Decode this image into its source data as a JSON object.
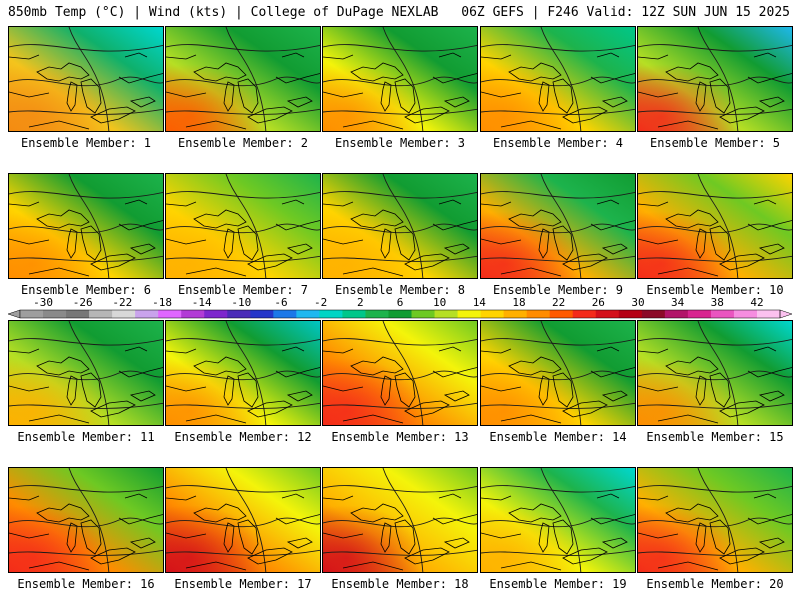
{
  "header": {
    "left": "850mb Temp (°C) | Wind (kts) | College of DuPage NEXLAB",
    "right": "06Z GEFS | F246 Valid: 12Z SUN JUN 15 2025"
  },
  "members": [
    {
      "label": "Ensemble Member: 1"
    },
    {
      "label": "Ensemble Member: 2"
    },
    {
      "label": "Ensemble Member: 3"
    },
    {
      "label": "Ensemble Member: 4"
    },
    {
      "label": "Ensemble Member: 5"
    },
    {
      "label": "Ensemble Member: 6"
    },
    {
      "label": "Ensemble Member: 7"
    },
    {
      "label": "Ensemble Member: 8"
    },
    {
      "label": "Ensemble Member: 9"
    },
    {
      "label": "Ensemble Member: 10"
    },
    {
      "label": "Ensemble Member: 11"
    },
    {
      "label": "Ensemble Member: 12"
    },
    {
      "label": "Ensemble Member: 13"
    },
    {
      "label": "Ensemble Member: 14"
    },
    {
      "label": "Ensemble Member: 15"
    },
    {
      "label": "Ensemble Member: 16"
    },
    {
      "label": "Ensemble Member: 17"
    },
    {
      "label": "Ensemble Member: 18"
    },
    {
      "label": "Ensemble Member: 19"
    },
    {
      "label": "Ensemble Member: 20"
    }
  ],
  "colorbar": {
    "ticks": [
      "-30",
      "-26",
      "-22",
      "-18",
      "-14",
      "-10",
      "-6",
      "-2",
      "2",
      "6",
      "10",
      "14",
      "18",
      "22",
      "26",
      "30",
      "34",
      "38",
      "42"
    ],
    "colors": [
      "#9e9e9e",
      "#8a8a8a",
      "#777777",
      "#b6b6b6",
      "#d8d8d8",
      "#c9a3ec",
      "#e066ff",
      "#b23bd6",
      "#7d26cd",
      "#4b2bb8",
      "#2436c9",
      "#1c78e8",
      "#1fb8f0",
      "#00d5c5",
      "#00c78a",
      "#1db34c",
      "#119c32",
      "#6ec923",
      "#b6df24",
      "#f4f40a",
      "#ffd400",
      "#ffb000",
      "#ff8c00",
      "#ff5a00",
      "#f42a1a",
      "#d40f1a",
      "#b50014",
      "#8c0a28",
      "#b21469",
      "#d8248f",
      "#ea55c0",
      "#f68de0",
      "#fbc1ef"
    ]
  }
}
